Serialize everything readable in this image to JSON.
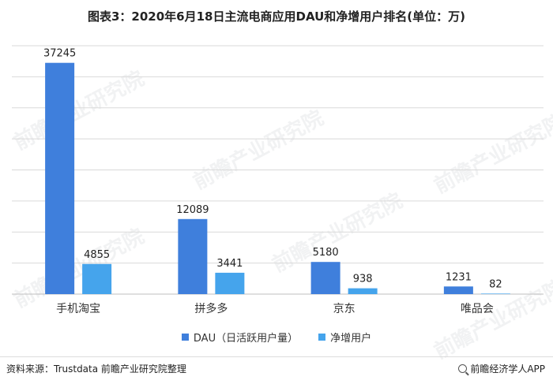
{
  "title": "图表3：2020年6月18日主流电商应用DAU和净增用户排名(单位：万)",
  "source": "资料来源：Trustdata 前瞻产业研究院整理",
  "credit": "前瞻经济学人APP",
  "watermark": "前瞻产业研究院",
  "colors": {
    "dau": "#3f7fdc",
    "net": "#45a4ec",
    "grid": "#d9d9d9",
    "axis": "#bfbfbf"
  },
  "chart_data": {
    "type": "bar",
    "title": "图表3：2020年6月18日主流电商应用DAU和净增用户排名(单位：万)",
    "categories": [
      "手机淘宝",
      "拼多多",
      "京东",
      "唯品会"
    ],
    "series": [
      {
        "name": "DAU（日活跃用户量）",
        "values": [
          37245,
          12089,
          5180,
          1231
        ]
      },
      {
        "name": "净增用户",
        "values": [
          4855,
          3441,
          938,
          82
        ]
      }
    ],
    "ylim": [
      0,
      40000
    ],
    "grid": true,
    "legend_position": "bottom"
  }
}
